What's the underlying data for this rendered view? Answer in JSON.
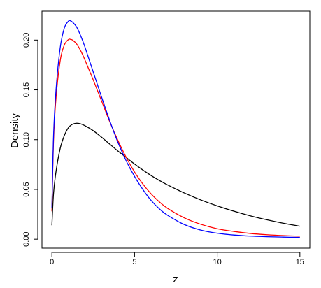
{
  "chart_data": {
    "type": "line",
    "title": "",
    "xlabel": "z",
    "ylabel": "Density",
    "xlim": [
      -0.6,
      15.6
    ],
    "ylim": [
      -0.009,
      0.229
    ],
    "xticks": [
      0,
      5,
      10,
      15
    ],
    "xtick_labels": [
      "0",
      "5",
      "10",
      "15"
    ],
    "yticks": [
      0.0,
      0.05,
      0.1,
      0.15,
      0.2
    ],
    "ytick_labels": [
      "0.00",
      "0.05",
      "0.10",
      "0.15",
      "0.20"
    ],
    "grid": false,
    "legend": "none",
    "series": [
      {
        "color": "#000000",
        "x": [
          0.0,
          0.1,
          0.25,
          0.5,
          0.75,
          1.0,
          1.25,
          1.5,
          1.75,
          2.0,
          2.5,
          3.0,
          3.5,
          4.0,
          4.5,
          5.0,
          5.5,
          6.0,
          6.5,
          7.0,
          8.0,
          9.0,
          10.0,
          11.0,
          12.0,
          13.0,
          14.0,
          15.0
        ],
        "y": [
          0.014,
          0.046,
          0.068,
          0.091,
          0.104,
          0.112,
          0.1155,
          0.1165,
          0.1158,
          0.114,
          0.109,
          0.1025,
          0.0955,
          0.0885,
          0.082,
          0.0755,
          0.0695,
          0.064,
          0.059,
          0.0545,
          0.0465,
          0.0395,
          0.0335,
          0.0282,
          0.0235,
          0.0195,
          0.016,
          0.013
        ]
      },
      {
        "color": "#ff0000",
        "x": [
          0.0,
          0.1,
          0.25,
          0.5,
          0.75,
          1.0,
          1.1,
          1.25,
          1.5,
          1.75,
          2.0,
          2.5,
          3.0,
          3.5,
          4.0,
          4.5,
          5.0,
          5.5,
          6.0,
          6.5,
          7.0,
          8.0,
          9.0,
          10.0,
          11.0,
          12.0,
          13.0,
          14.0,
          15.0
        ],
        "y": [
          0.028,
          0.099,
          0.142,
          0.179,
          0.195,
          0.2005,
          0.2008,
          0.2,
          0.196,
          0.189,
          0.18,
          0.16,
          0.139,
          0.118,
          0.099,
          0.082,
          0.0675,
          0.0555,
          0.0455,
          0.0375,
          0.031,
          0.0215,
          0.015,
          0.0105,
          0.0078,
          0.0058,
          0.0045,
          0.0036,
          0.003
        ]
      },
      {
        "color": "#0000ff",
        "x": [
          0.0,
          0.1,
          0.25,
          0.5,
          0.75,
          1.0,
          1.1,
          1.25,
          1.5,
          1.75,
          2.0,
          2.5,
          3.0,
          3.5,
          4.0,
          4.5,
          5.0,
          5.5,
          6.0,
          6.5,
          7.0,
          8.0,
          9.0,
          10.0,
          11.0,
          12.0,
          13.0,
          14.0,
          15.0
        ],
        "y": [
          0.031,
          0.104,
          0.15,
          0.192,
          0.212,
          0.219,
          0.2195,
          0.218,
          0.213,
          0.204,
          0.193,
          0.168,
          0.143,
          0.119,
          0.097,
          0.0785,
          0.063,
          0.05,
          0.039,
          0.0305,
          0.024,
          0.0148,
          0.0092,
          0.006,
          0.0042,
          0.0031,
          0.0025,
          0.0021,
          0.0018
        ]
      }
    ]
  }
}
